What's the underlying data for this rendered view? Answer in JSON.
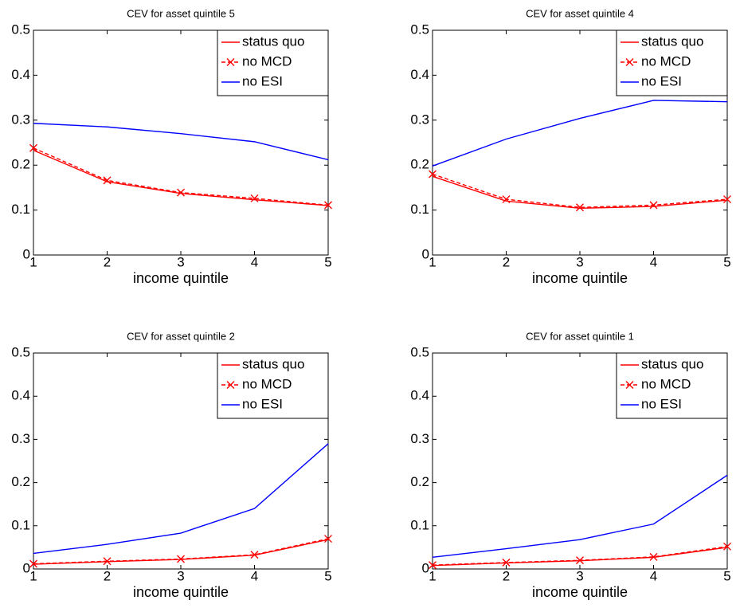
{
  "chart_data": [
    {
      "type": "line",
      "title": "CEV for asset quintile 5",
      "xlabel": "income quintile",
      "x": [
        1,
        2,
        3,
        4,
        5
      ],
      "xlim": [
        1,
        5
      ],
      "xticks": [
        1,
        2,
        3,
        4,
        5
      ],
      "ylim": [
        0,
        0.5
      ],
      "yticks": [
        0,
        0.1,
        0.2,
        0.3,
        0.4,
        0.5
      ],
      "grid": false,
      "legend": "upper right",
      "series": [
        {
          "name": "status quo",
          "color": "#ff0000",
          "linestyle": "solid",
          "marker": "none",
          "values": [
            0.233,
            0.163,
            0.137,
            0.123,
            0.11
          ]
        },
        {
          "name": "no MCD",
          "color": "#ff0000",
          "linestyle": "dashed",
          "marker": "x",
          "values": [
            0.238,
            0.166,
            0.139,
            0.126,
            0.111
          ]
        },
        {
          "name": "no ESI",
          "color": "#0000ff",
          "linestyle": "solid",
          "marker": "none",
          "values": [
            0.293,
            0.285,
            0.27,
            0.252,
            0.212
          ]
        }
      ]
    },
    {
      "type": "line",
      "title": "CEV for asset quintile 4",
      "xlabel": "income quintile",
      "x": [
        1,
        2,
        3,
        4,
        5
      ],
      "xlim": [
        1,
        5
      ],
      "xticks": [
        1,
        2,
        3,
        4,
        5
      ],
      "ylim": [
        0,
        0.5
      ],
      "yticks": [
        0,
        0.1,
        0.2,
        0.3,
        0.4,
        0.5
      ],
      "grid": false,
      "legend": "upper right",
      "series": [
        {
          "name": "status quo",
          "color": "#ff0000",
          "linestyle": "solid",
          "marker": "none",
          "values": [
            0.175,
            0.12,
            0.104,
            0.108,
            0.122
          ]
        },
        {
          "name": "no MCD",
          "color": "#ff0000",
          "linestyle": "dashed",
          "marker": "x",
          "values": [
            0.18,
            0.124,
            0.106,
            0.111,
            0.124
          ]
        },
        {
          "name": "no ESI",
          "color": "#0000ff",
          "linestyle": "solid",
          "marker": "none",
          "values": [
            0.198,
            0.258,
            0.304,
            0.344,
            0.341
          ]
        }
      ]
    },
    {
      "type": "line",
      "title": "CEV for asset quintile 2",
      "xlabel": "income quintile",
      "x": [
        1,
        2,
        3,
        4,
        5
      ],
      "xlim": [
        1,
        5
      ],
      "xticks": [
        1,
        2,
        3,
        4,
        5
      ],
      "ylim": [
        0,
        0.5
      ],
      "yticks": [
        0,
        0.1,
        0.2,
        0.3,
        0.4,
        0.5
      ],
      "grid": false,
      "legend": "upper right",
      "series": [
        {
          "name": "status quo",
          "color": "#ff0000",
          "linestyle": "solid",
          "marker": "none",
          "values": [
            0.011,
            0.017,
            0.022,
            0.032,
            0.068
          ]
        },
        {
          "name": "no MCD",
          "color": "#ff0000",
          "linestyle": "dashed",
          "marker": "x",
          "values": [
            0.012,
            0.018,
            0.023,
            0.033,
            0.07
          ]
        },
        {
          "name": "no ESI",
          "color": "#0000ff",
          "linestyle": "solid",
          "marker": "none",
          "values": [
            0.036,
            0.057,
            0.083,
            0.14,
            0.29
          ]
        }
      ]
    },
    {
      "type": "line",
      "title": "CEV for asset quintile 1",
      "xlabel": "income quintile",
      "x": [
        1,
        2,
        3,
        4,
        5
      ],
      "xlim": [
        1,
        5
      ],
      "xticks": [
        1,
        2,
        3,
        4,
        5
      ],
      "ylim": [
        0,
        0.5
      ],
      "yticks": [
        0,
        0.1,
        0.2,
        0.3,
        0.4,
        0.5
      ],
      "grid": false,
      "legend": "upper right",
      "series": [
        {
          "name": "status quo",
          "color": "#ff0000",
          "linestyle": "solid",
          "marker": "none",
          "values": [
            0.008,
            0.014,
            0.019,
            0.027,
            0.05
          ]
        },
        {
          "name": "no MCD",
          "color": "#ff0000",
          "linestyle": "dashed",
          "marker": "x",
          "values": [
            0.009,
            0.015,
            0.02,
            0.028,
            0.052
          ]
        },
        {
          "name": "no ESI",
          "color": "#0000ff",
          "linestyle": "solid",
          "marker": "none",
          "values": [
            0.027,
            0.047,
            0.068,
            0.104,
            0.217
          ]
        }
      ]
    }
  ]
}
